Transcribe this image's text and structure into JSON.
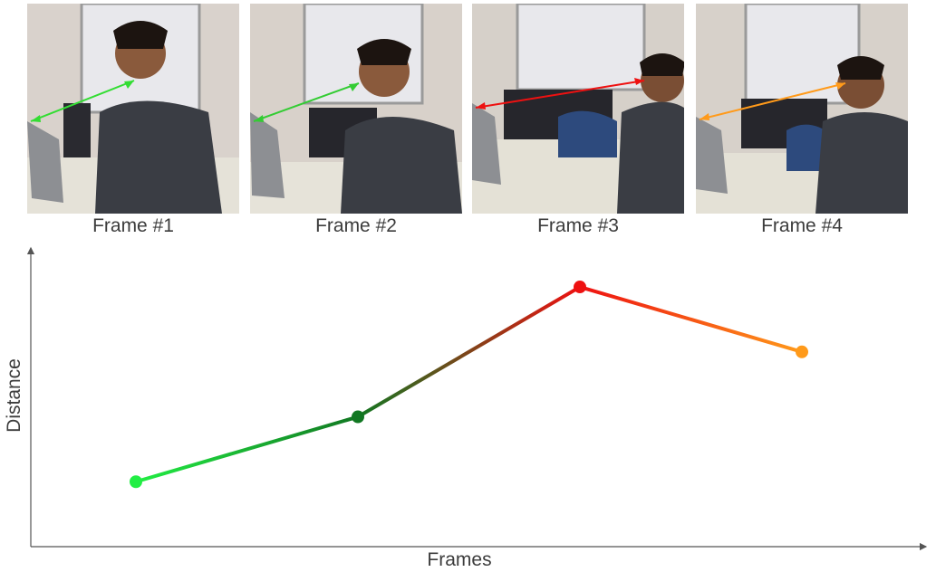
{
  "frames": [
    {
      "label": "Frame #1",
      "arrow_color": "#33dd33"
    },
    {
      "label": "Frame #2",
      "arrow_color": "#33cc33"
    },
    {
      "label": "Frame #3",
      "arrow_color": "#ee1111"
    },
    {
      "label": "Frame #4",
      "arrow_color": "#ff9a1a"
    }
  ],
  "chart_data": {
    "type": "line",
    "title": "",
    "xlabel": "Frames",
    "ylabel": "Distance",
    "x": [
      1,
      2,
      3,
      4
    ],
    "values": [
      1.0,
      2.0,
      4.0,
      3.0
    ],
    "point_colors": [
      "#22ee44",
      "#117722",
      "#ee1111",
      "#ff9a1a"
    ],
    "grid": false,
    "ylim": [
      0,
      4.6
    ]
  }
}
